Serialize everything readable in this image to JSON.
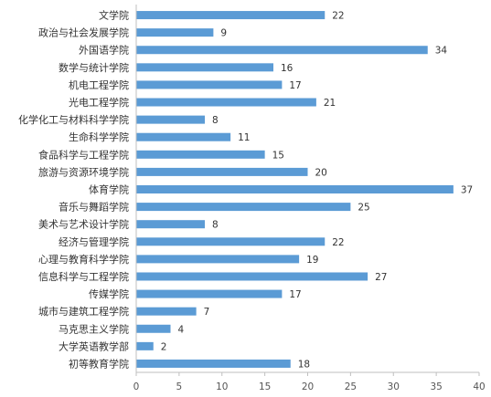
{
  "chart_data": {
    "type": "bar",
    "orientation": "horizontal",
    "categories": [
      "文学院",
      "政治与社会发展学院",
      "外国语学院",
      "数学与统计学院",
      "机电工程学院",
      "光电工程学院",
      "化学化工与材料科学学院",
      "生命科学学院",
      "食品科学与工程学院",
      "旅游与资源环境学院",
      "体育学院",
      "音乐与舞蹈学院",
      "美术与艺术设计学院",
      "经济与管理学院",
      "心理与教育科学学院",
      "信息科学与工程学院",
      "传媒学院",
      "城市与建筑工程学院",
      "马克思主义学院",
      "大学英语教学部",
      "初等教育学院"
    ],
    "values": [
      22,
      9,
      34,
      16,
      17,
      21,
      8,
      11,
      15,
      20,
      37,
      25,
      8,
      22,
      19,
      27,
      17,
      7,
      4,
      2,
      18
    ],
    "xlim": [
      0,
      40
    ],
    "xticks": [
      0,
      5,
      10,
      15,
      20,
      25,
      30,
      35,
      40
    ],
    "grid": false,
    "data_labels": true,
    "bar_color": "#5b9bd5",
    "axis_color": "#bfbfbf"
  }
}
